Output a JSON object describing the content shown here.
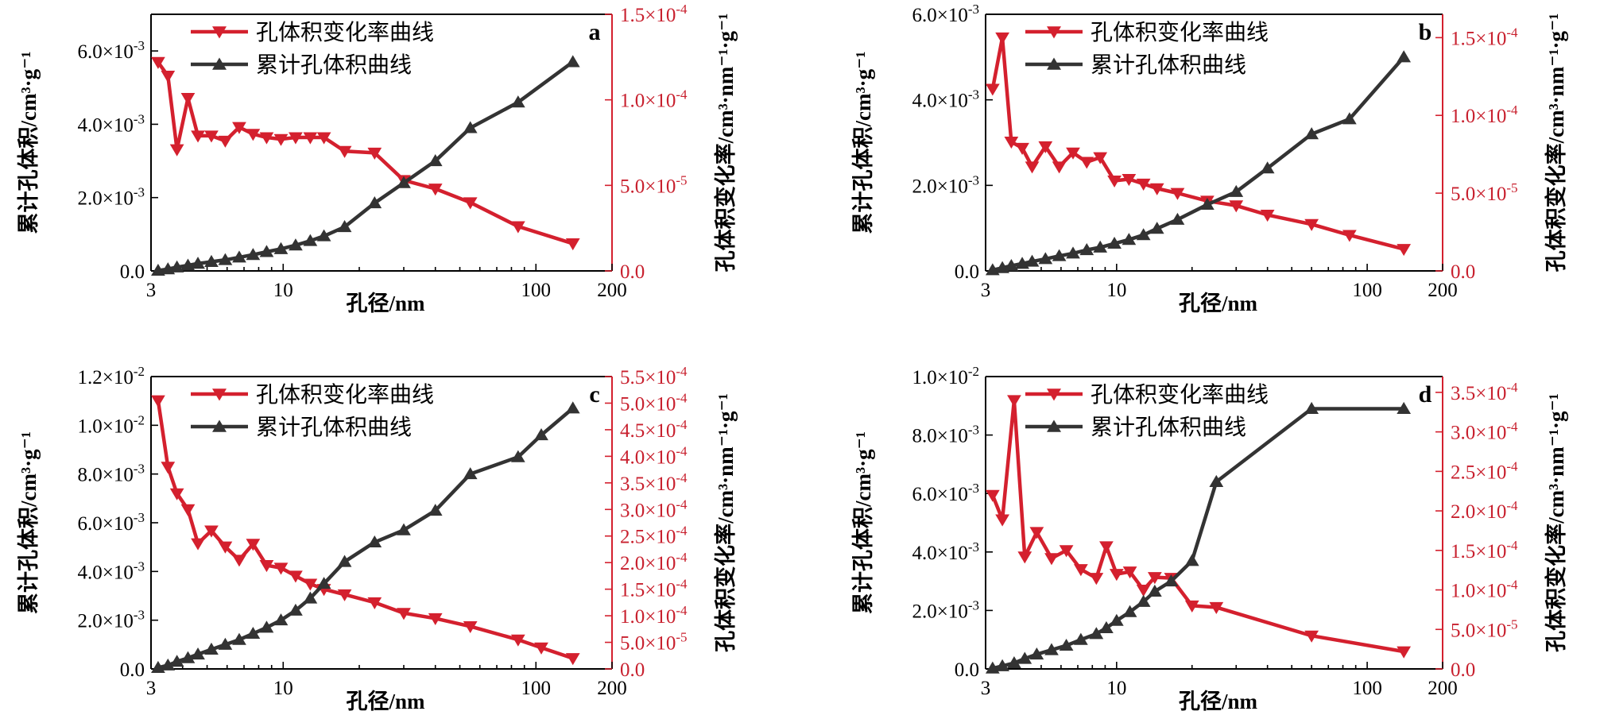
{
  "chart_data": [
    {
      "type": "line",
      "panel_label": "a",
      "xlabel": "孔径/nm",
      "ylabel_left": "累计孔体积/cm³·g⁻¹",
      "ylabel_right": "孔体积变化率/cm³·nm⁻¹·g⁻¹",
      "x_scale": "log",
      "xlim": [
        3,
        200
      ],
      "x_ticks": [
        3,
        10,
        100,
        200
      ],
      "x_tick_labels": [
        "3",
        "10",
        "100",
        "200"
      ],
      "ylim_left": [
        0,
        0.007
      ],
      "y_left_ticks": [
        0,
        0.002,
        0.004,
        0.006
      ],
      "y_left_tick_labels": [
        [
          "0.0",
          ""
        ],
        [
          "2.0",
          "-3"
        ],
        [
          "4.0",
          "-3"
        ],
        [
          "6.0",
          "-3"
        ]
      ],
      "ylim_right": [
        0,
        0.00015
      ],
      "y_right_ticks": [
        0,
        5e-05,
        0.0001,
        0.00015
      ],
      "y_right_tick_labels": [
        [
          "0.0",
          ""
        ],
        [
          "5.0",
          "-5"
        ],
        [
          "1.0",
          "-4"
        ],
        [
          "1.5",
          "-4"
        ]
      ],
      "legend": [
        "孔体积变化率曲线",
        "累计孔体积曲线"
      ],
      "series": [
        {
          "name": "孔体积变化率曲线",
          "axis": "right",
          "color": "#d4202e",
          "marker": "triangle-down",
          "x": [
            3.2,
            3.5,
            3.8,
            4.2,
            4.6,
            5.2,
            5.9,
            6.7,
            7.6,
            8.6,
            9.8,
            11.2,
            12.8,
            14.5,
            17.5,
            23.0,
            30.0,
            40.0,
            55.0,
            85.0,
            140.0
          ],
          "y": [
            0.000122,
            0.000114,
            7.1e-05,
            0.000101,
            7.9e-05,
            7.9e-05,
            7.6e-05,
            8.4e-05,
            8e-05,
            7.8e-05,
            7.7e-05,
            7.8e-05,
            7.8e-05,
            7.8e-05,
            7e-05,
            6.9e-05,
            5.3e-05,
            4.8e-05,
            4e-05,
            2.6e-05,
            1.6e-05
          ]
        },
        {
          "name": "累计孔体积曲线",
          "axis": "left",
          "color": "#333333",
          "marker": "triangle-up",
          "x": [
            3.2,
            3.5,
            3.8,
            4.2,
            4.6,
            5.2,
            5.9,
            6.7,
            7.6,
            8.6,
            9.8,
            11.2,
            12.8,
            14.5,
            17.5,
            23.0,
            30.0,
            40.0,
            55.0,
            85.0,
            140.0
          ],
          "y": [
            1e-05,
            5e-05,
            0.0001,
            0.00015,
            0.0002,
            0.00025,
            0.0003,
            0.00037,
            0.00044,
            0.00052,
            0.0006,
            0.0007,
            0.00082,
            0.00095,
            0.0012,
            0.00185,
            0.0024,
            0.003,
            0.0039,
            0.0046,
            0.0057
          ]
        }
      ]
    },
    {
      "type": "line",
      "panel_label": "b",
      "xlabel": "孔径/nm",
      "ylabel_left": "累计孔体积/cm³·g⁻¹",
      "ylabel_right": "孔体积变化率/cm³·nm⁻¹·g⁻¹",
      "x_scale": "log",
      "xlim": [
        3,
        200
      ],
      "x_ticks": [
        3,
        10,
        100,
        200
      ],
      "x_tick_labels": [
        "3",
        "10",
        "100",
        "200"
      ],
      "ylim_left": [
        0,
        0.006
      ],
      "y_left_ticks": [
        0,
        0.002,
        0.004,
        0.006
      ],
      "y_left_tick_labels": [
        [
          "0.0",
          ""
        ],
        [
          "2.0",
          "-3"
        ],
        [
          "4.0",
          "-3"
        ],
        [
          "6.0",
          "-3"
        ]
      ],
      "ylim_right": [
        0,
        0.000165
      ],
      "y_right_ticks": [
        0,
        5e-05,
        0.0001,
        0.00015
      ],
      "y_right_tick_labels": [
        [
          "0.0",
          ""
        ],
        [
          "5.0",
          "-5"
        ],
        [
          "1.0",
          "-4"
        ],
        [
          "1.5",
          "-4"
        ]
      ],
      "legend": [
        "孔体积变化率曲线",
        "累计孔体积曲线"
      ],
      "series": [
        {
          "name": "孔体积变化率曲线",
          "axis": "right",
          "color": "#d4202e",
          "marker": "triangle-down",
          "x": [
            3.2,
            3.5,
            3.8,
            4.2,
            4.6,
            5.2,
            5.9,
            6.7,
            7.6,
            8.6,
            9.8,
            11.2,
            12.8,
            14.5,
            17.5,
            23.0,
            30.0,
            40.0,
            60.0,
            85.0,
            140.0
          ],
          "y": [
            0.000117,
            0.00015,
            8.3e-05,
            7.9e-05,
            6.7e-05,
            8e-05,
            6.7e-05,
            7.6e-05,
            7e-05,
            7.3e-05,
            5.8e-05,
            5.9e-05,
            5.6e-05,
            5.3e-05,
            5e-05,
            4.5e-05,
            4.2e-05,
            3.6e-05,
            3e-05,
            2.3e-05,
            1.4e-05
          ]
        },
        {
          "name": "累计孔体积曲线",
          "axis": "left",
          "color": "#333333",
          "marker": "triangle-up",
          "x": [
            3.2,
            3.5,
            3.8,
            4.2,
            4.6,
            5.2,
            5.9,
            6.7,
            7.6,
            8.6,
            9.8,
            11.2,
            12.8,
            14.5,
            17.5,
            23.0,
            30.0,
            40.0,
            60.0,
            85.0,
            140.0
          ],
          "y": [
            2e-05,
            7e-05,
            0.00012,
            0.00017,
            0.00022,
            0.00028,
            0.00035,
            0.00041,
            0.00049,
            0.00055,
            0.00064,
            0.00073,
            0.00084,
            0.00099,
            0.0012,
            0.00155,
            0.00185,
            0.0024,
            0.0032,
            0.00355,
            0.005
          ]
        }
      ]
    },
    {
      "type": "line",
      "panel_label": "c",
      "xlabel": "孔径/nm",
      "ylabel_left": "累计孔体积/cm³·g⁻¹",
      "ylabel_right": "孔体积变化率/cm³·nm⁻¹·g⁻¹",
      "x_scale": "log",
      "xlim": [
        3,
        200
      ],
      "x_ticks": [
        3,
        10,
        100,
        200
      ],
      "x_tick_labels": [
        "3",
        "10",
        "100",
        "200"
      ],
      "ylim_left": [
        0,
        0.012
      ],
      "y_left_ticks": [
        0,
        0.002,
        0.004,
        0.006,
        0.008,
        0.01,
        0.012
      ],
      "y_left_tick_labels": [
        [
          "0.0",
          ""
        ],
        [
          "2.0",
          "-3"
        ],
        [
          "4.0",
          "-3"
        ],
        [
          "6.0",
          "-3"
        ],
        [
          "8.0",
          "-3"
        ],
        [
          "1.0",
          "-2"
        ],
        [
          "1.2",
          "-2"
        ]
      ],
      "ylim_right": [
        0,
        0.00055
      ],
      "y_right_ticks": [
        0,
        5e-05,
        0.0001,
        0.00015,
        0.0002,
        0.00025,
        0.0003,
        0.00035,
        0.0004,
        0.00045,
        0.0005,
        0.00055
      ],
      "y_right_tick_labels": [
        [
          "0.0",
          ""
        ],
        [
          "5.0",
          "-5"
        ],
        [
          "1.0",
          "-4"
        ],
        [
          "1.5",
          "-4"
        ],
        [
          "2.0",
          "-4"
        ],
        [
          "2.5",
          "-4"
        ],
        [
          "3.0",
          "-4"
        ],
        [
          "3.5",
          "-4"
        ],
        [
          "4.0",
          "-4"
        ],
        [
          "4.5",
          "-4"
        ],
        [
          "5.0",
          "-4"
        ],
        [
          "5.5",
          "-4"
        ]
      ],
      "legend": [
        "孔体积变化率曲线",
        "累计孔体积曲线"
      ],
      "series": [
        {
          "name": "孔体积变化率曲线",
          "axis": "right",
          "color": "#d4202e",
          "marker": "triangle-down",
          "x": [
            3.2,
            3.5,
            3.8,
            4.2,
            4.6,
            5.2,
            5.9,
            6.7,
            7.6,
            8.6,
            9.8,
            11.2,
            12.8,
            14.5,
            17.5,
            23.0,
            30.0,
            40.0,
            55.0,
            85.0,
            105.0,
            140.0
          ],
          "y": [
            0.000505,
            0.00038,
            0.00033,
            0.0003,
            0.000236,
            0.00026,
            0.00023,
            0.000205,
            0.000235,
            0.000195,
            0.00019,
            0.000175,
            0.00016,
            0.00015,
            0.00014,
            0.000125,
            0.000105,
            9.5e-05,
            8e-05,
            5.5e-05,
            4e-05,
            2e-05
          ]
        },
        {
          "name": "累计孔体积曲线",
          "axis": "left",
          "color": "#333333",
          "marker": "triangle-up",
          "x": [
            3.2,
            3.5,
            3.8,
            4.2,
            4.6,
            5.2,
            5.9,
            6.7,
            7.6,
            8.6,
            9.8,
            11.2,
            12.8,
            14.5,
            17.5,
            23.0,
            30.0,
            40.0,
            55.0,
            85.0,
            105.0,
            140.0
          ],
          "y": [
            5e-05,
            0.00015,
            0.0003,
            0.00045,
            0.0006,
            0.0008,
            0.001,
            0.0012,
            0.00145,
            0.0017,
            0.002,
            0.0024,
            0.0029,
            0.0035,
            0.0044,
            0.0052,
            0.0057,
            0.0065,
            0.008,
            0.0087,
            0.0096,
            0.0107
          ]
        }
      ]
    },
    {
      "type": "line",
      "panel_label": "d",
      "xlabel": "孔径/nm",
      "ylabel_left": "累计孔体积/cm³·g⁻¹",
      "ylabel_right": "孔体积变化率/cm³·nm⁻¹·g⁻¹",
      "x_scale": "log",
      "xlim": [
        3,
        200
      ],
      "x_ticks": [
        3,
        10,
        100,
        200
      ],
      "x_tick_labels": [
        "3",
        "10",
        "100",
        "200"
      ],
      "ylim_left": [
        0,
        0.01
      ],
      "y_left_ticks": [
        0,
        0.002,
        0.004,
        0.006,
        0.008,
        0.01
      ],
      "y_left_tick_labels": [
        [
          "0.0",
          ""
        ],
        [
          "2.0",
          "-3"
        ],
        [
          "4.0",
          "-3"
        ],
        [
          "6.0",
          "-3"
        ],
        [
          "8.0",
          "-3"
        ],
        [
          "1.0",
          "-2"
        ]
      ],
      "ylim_right": [
        0,
        0.00037
      ],
      "y_right_ticks": [
        0,
        5e-05,
        0.0001,
        0.00015,
        0.0002,
        0.00025,
        0.0003,
        0.00035
      ],
      "y_right_tick_labels": [
        [
          "0.0",
          ""
        ],
        [
          "5.0",
          "-5"
        ],
        [
          "1.0",
          "-4"
        ],
        [
          "1.5",
          "-4"
        ],
        [
          "2.0",
          "-4"
        ],
        [
          "2.5",
          "-4"
        ],
        [
          "3.0",
          "-4"
        ],
        [
          "3.5",
          "-4"
        ]
      ],
      "legend": [
        "孔体积变化率曲线",
        "累计孔体积曲线"
      ],
      "series": [
        {
          "name": "孔体积变化率曲线",
          "axis": "right",
          "color": "#d4202e",
          "marker": "triangle-down",
          "x": [
            3.2,
            3.5,
            3.9,
            4.3,
            4.8,
            5.5,
            6.3,
            7.2,
            8.3,
            9.1,
            10.0,
            11.3,
            12.8,
            14.2,
            16.5,
            20.0,
            25.0,
            60.0,
            140.0
          ],
          "y": [
            0.00022,
            0.000189,
            0.00034,
            0.000142,
            0.000173,
            0.00014,
            0.00015,
            0.000126,
            0.000115,
            0.000155,
            0.00012,
            0.000123,
            0.0001,
            0.000116,
            0.000115,
            8e-05,
            7.8e-05,
            4.2e-05,
            2.2e-05
          ]
        },
        {
          "name": "累计孔体积曲线",
          "axis": "left",
          "color": "#333333",
          "marker": "triangle-up",
          "x": [
            3.2,
            3.5,
            3.9,
            4.3,
            4.8,
            5.5,
            6.3,
            7.2,
            8.3,
            9.1,
            10.0,
            11.3,
            12.8,
            14.2,
            16.5,
            20.0,
            25.0,
            60.0,
            140.0
          ],
          "y": [
            2e-05,
            0.0001,
            0.0002,
            0.00035,
            0.0005,
            0.00065,
            0.0008,
            0.001,
            0.0012,
            0.0014,
            0.00165,
            0.00195,
            0.0023,
            0.00265,
            0.003,
            0.0037,
            0.0064,
            0.0089,
            0.0089
          ]
        }
      ]
    }
  ]
}
